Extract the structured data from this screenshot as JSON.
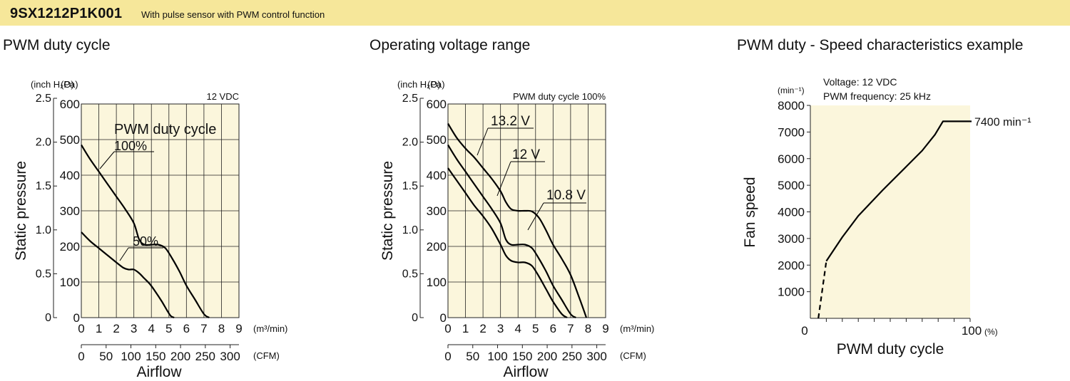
{
  "header": {
    "model": "9SX1212P1K001",
    "subtitle": "With pulse sensor with PWM control function"
  },
  "panels": {
    "p1_title": "PWM duty cycle",
    "p2_title": "Operating voltage range",
    "p3_title": "PWM duty - Speed characteristics example"
  },
  "chart_data": [
    {
      "type": "line",
      "title": "PWM duty cycle",
      "ylabel": "Static pressure",
      "xlabel": "Airflow",
      "y_units": [
        "(inch H₂O)",
        "(Pa)"
      ],
      "x_units": [
        "(m³/min)",
        "(CFM)"
      ],
      "note": "12 VDC",
      "series_group_label": "PWM duty cycle",
      "y_pa_ticks": [
        "0",
        "100",
        "200",
        "300",
        "400",
        "500",
        "600"
      ],
      "y_inch_ticks": [
        "0",
        "0.5",
        "1.0",
        "1.5",
        "2.0",
        "2.5"
      ],
      "x_m3_ticks": [
        "0",
        "1",
        "2",
        "3",
        "4",
        "5",
        "6",
        "7",
        "8",
        "9"
      ],
      "x_cfm_ticks": [
        "0",
        "50",
        "100",
        "150",
        "200",
        "250",
        "300"
      ],
      "xlim": [
        0,
        9
      ],
      "ylim": [
        0,
        600
      ],
      "grid": true,
      "series": [
        {
          "name": "100%",
          "x": [
            0,
            0.5,
            1,
            1.5,
            2,
            2.5,
            3,
            3.3,
            3.6,
            4,
            4.4,
            4.8,
            5.2,
            5.6,
            6,
            6.5,
            7,
            7.3
          ],
          "y": [
            485,
            445,
            410,
            375,
            340,
            305,
            265,
            220,
            205,
            205,
            205,
            195,
            165,
            130,
            90,
            50,
            10,
            0
          ]
        },
        {
          "name": "50%",
          "x": [
            0,
            0.5,
            1,
            1.5,
            2,
            2.4,
            2.7,
            3,
            3.3,
            3.6,
            3.9,
            4.2,
            4.6,
            4.9,
            5.1,
            5.3
          ],
          "y": [
            240,
            215,
            195,
            175,
            155,
            140,
            135,
            135,
            125,
            110,
            95,
            75,
            45,
            20,
            5,
            0
          ]
        }
      ]
    },
    {
      "type": "line",
      "title": "Operating voltage range",
      "ylabel": "Static pressure",
      "xlabel": "Airflow",
      "y_units": [
        "(inch H₂O)",
        "(Pa)"
      ],
      "x_units": [
        "(m³/min)",
        "(CFM)"
      ],
      "note": "PWM duty cycle 100%",
      "y_pa_ticks": [
        "0",
        "100",
        "200",
        "300",
        "400",
        "500",
        "600"
      ],
      "y_inch_ticks": [
        "0",
        "0.5",
        "1.0",
        "1.5",
        "2.0",
        "2.5"
      ],
      "x_m3_ticks": [
        "0",
        "1",
        "2",
        "3",
        "4",
        "5",
        "6",
        "7",
        "8",
        "9"
      ],
      "x_cfm_ticks": [
        "0",
        "50",
        "100",
        "150",
        "200",
        "250",
        "300"
      ],
      "xlim": [
        0,
        9
      ],
      "ylim": [
        0,
        600
      ],
      "grid": true,
      "series": [
        {
          "name": "13.2 V",
          "x": [
            0,
            0.5,
            1,
            1.5,
            2,
            2.5,
            3,
            3.3,
            3.6,
            4,
            4.4,
            4.8,
            5.2,
            5.6,
            6,
            6.5,
            7,
            7.5,
            7.9
          ],
          "y": [
            545,
            505,
            475,
            450,
            420,
            390,
            355,
            325,
            305,
            300,
            300,
            298,
            280,
            245,
            205,
            165,
            120,
            55,
            0
          ]
        },
        {
          "name": "12 V",
          "x": [
            0,
            0.5,
            1,
            1.5,
            2,
            2.5,
            3,
            3.3,
            3.6,
            4,
            4.4,
            4.8,
            5.2,
            5.6,
            6,
            6.5,
            7,
            7.3
          ],
          "y": [
            485,
            445,
            410,
            375,
            340,
            305,
            265,
            220,
            205,
            205,
            205,
            195,
            165,
            130,
            90,
            50,
            10,
            0
          ]
        },
        {
          "name": "10.8 V",
          "x": [
            0,
            0.5,
            1,
            1.5,
            2,
            2.5,
            3,
            3.3,
            3.6,
            4,
            4.4,
            4.8,
            5.2,
            5.6,
            6,
            6.5,
            6.8
          ],
          "y": [
            420,
            385,
            350,
            315,
            285,
            250,
            205,
            175,
            160,
            155,
            155,
            145,
            115,
            80,
            45,
            10,
            0
          ]
        }
      ]
    },
    {
      "type": "line",
      "title": "PWM duty - Speed characteristics example",
      "ylabel": "Fan speed",
      "xlabel": "PWM duty cycle",
      "y_unit": "(min⁻¹)",
      "x_unit": "(%)",
      "note": [
        "Voltage: 12 VDC",
        "PWM frequency: 25 kHz"
      ],
      "y_ticks": [
        "1000",
        "2000",
        "3000",
        "4000",
        "5000",
        "6000",
        "7000",
        "8000"
      ],
      "x_ticks": [
        "0",
        "100"
      ],
      "xlim": [
        0,
        100
      ],
      "ylim": [
        0,
        8000
      ],
      "grid": false,
      "annotation": "7400 min⁻¹",
      "series": [
        {
          "name": "solid",
          "x": [
            10,
            20,
            30,
            45,
            60,
            70,
            78,
            83,
            100
          ],
          "y": [
            2150,
            3050,
            3850,
            4800,
            5700,
            6300,
            6900,
            7400,
            7400
          ]
        },
        {
          "name": "dashed",
          "x": [
            5,
            10
          ],
          "y": [
            0,
            2150
          ]
        }
      ]
    }
  ]
}
